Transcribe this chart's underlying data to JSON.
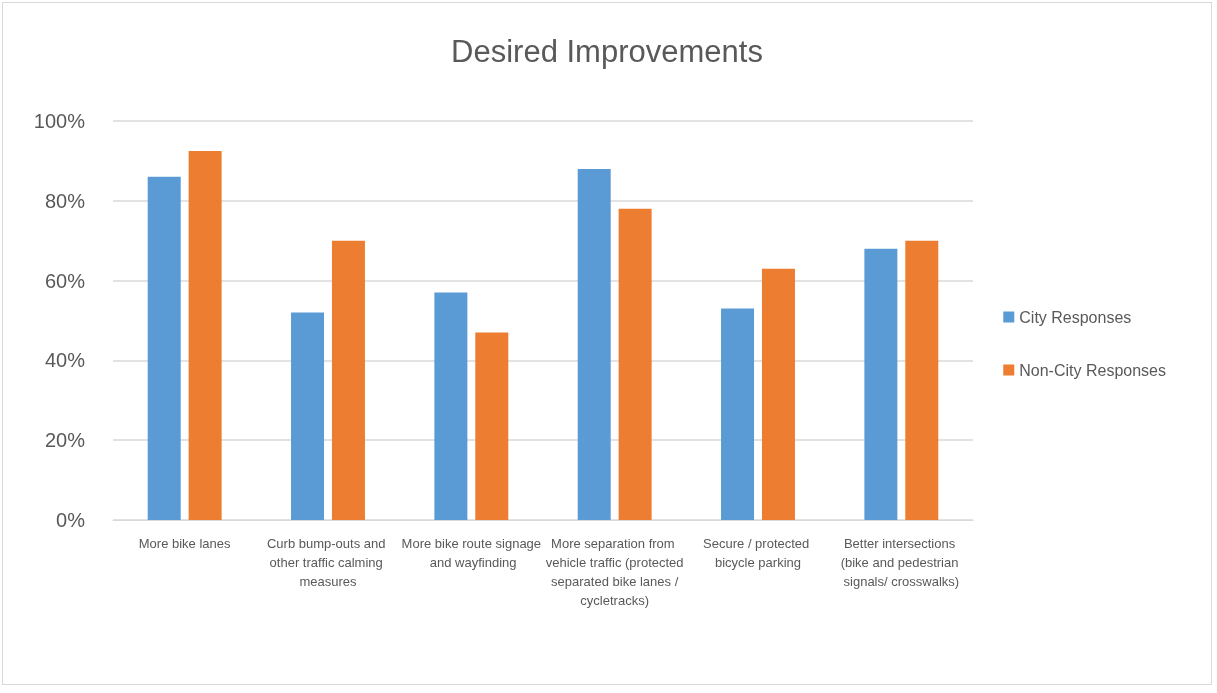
{
  "chart_data": {
    "type": "bar",
    "title": "Desired Improvements",
    "categories": [
      "More bike lanes",
      "Curb bump-outs and other traffic calming measures",
      "More bike route signage and wayfinding",
      "More separation from vehicle traffic (protected separated bike lanes / cycletracks)",
      "Secure / protected bicycle parking",
      "Better intersections (bike and pedestrian signals/ crosswalks)"
    ],
    "series": [
      {
        "name": "City Responses",
        "color": "#5b9bd5",
        "values": [
          86,
          52,
          57,
          88,
          53,
          68
        ]
      },
      {
        "name": "Non-City Responses",
        "color": "#ed7d31",
        "values": [
          92.5,
          70,
          47,
          78,
          63,
          70
        ]
      }
    ],
    "ylim": [
      0,
      100
    ],
    "yticks": [
      {
        "value": 0,
        "label": "0%"
      },
      {
        "value": 20,
        "label": "20%"
      },
      {
        "value": 40,
        "label": "40%"
      },
      {
        "value": 60,
        "label": "60%"
      },
      {
        "value": 80,
        "label": "80%"
      },
      {
        "value": 100,
        "label": "100%"
      }
    ],
    "grid": "y",
    "legend": "right"
  }
}
